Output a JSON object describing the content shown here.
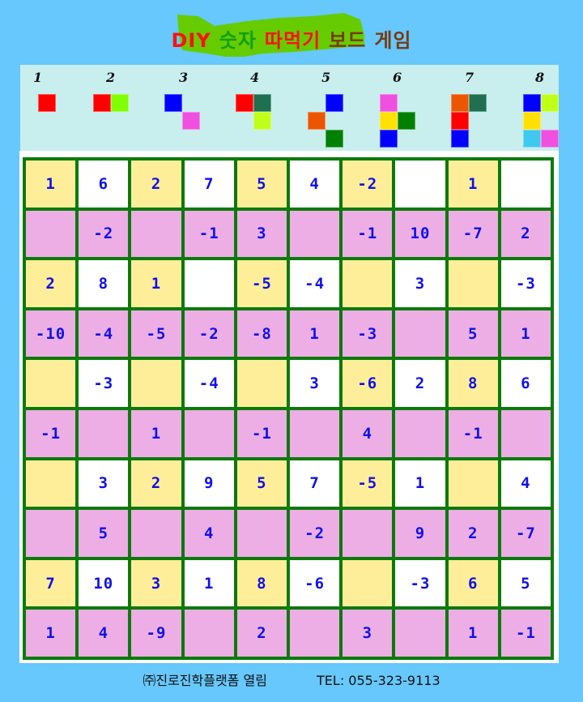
{
  "title": {
    "words": [
      {
        "text": "DIY",
        "color": "#ff1010"
      },
      {
        "text": "숫자",
        "color": "#10a010"
      },
      {
        "text": "따먹기",
        "color": "#ff1010"
      },
      {
        "text": "보드",
        "color": "#7a3a10"
      },
      {
        "text": "게임",
        "color": "#7a3a10"
      }
    ],
    "blob_color": "#66cc00"
  },
  "pieces": [
    {
      "label": "1",
      "cells": [
        [
          0,
          0,
          "#ff0000"
        ]
      ]
    },
    {
      "label": "2",
      "cells": [
        [
          0,
          0,
          "#ff0000"
        ],
        [
          0,
          1,
          "#80ff00"
        ]
      ]
    },
    {
      "label": "3",
      "cells": [
        [
          0,
          0,
          "#0000ff"
        ],
        [
          1,
          1,
          "#f050e0"
        ]
      ]
    },
    {
      "label": "4",
      "cells": [
        [
          0,
          0,
          "#ff0000"
        ],
        [
          0,
          1,
          "#1e7050"
        ],
        [
          1,
          1,
          "#c0ff18"
        ]
      ]
    },
    {
      "label": "5",
      "cells": [
        [
          0,
          1,
          "#0000ff"
        ],
        [
          1,
          0,
          "#ee5500"
        ],
        [
          2,
          1,
          "#008000"
        ]
      ]
    },
    {
      "label": "6",
      "cells": [
        [
          0,
          0,
          "#f050e0"
        ],
        [
          1,
          0,
          "#ffe000"
        ],
        [
          1,
          1,
          "#008000"
        ],
        [
          2,
          0,
          "#0000ff"
        ]
      ]
    },
    {
      "label": "7",
      "cells": [
        [
          0,
          0,
          "#ee5500"
        ],
        [
          0,
          1,
          "#1e7050"
        ],
        [
          1,
          0,
          "#ff0000"
        ],
        [
          2,
          0,
          "#0000ff"
        ]
      ]
    },
    {
      "label": "8",
      "cells": [
        [
          0,
          0,
          "#0000ff"
        ],
        [
          0,
          1,
          "#c0ff18"
        ],
        [
          1,
          0,
          "#ffe000"
        ],
        [
          2,
          0,
          "#40c8f0"
        ],
        [
          2,
          1,
          "#f050e0"
        ]
      ]
    }
  ],
  "board": {
    "colors": {
      "yellow": "#ffee99",
      "white": "#ffffff",
      "pink": "#ecaee4",
      "border": "#0b7a0b",
      "number": "#1010e8"
    },
    "rows": [
      [
        "1",
        "6",
        "2",
        "7",
        "5",
        "4",
        "-2",
        "",
        "1",
        ""
      ],
      [
        "",
        "-2",
        "",
        "-1",
        "3",
        "",
        "-1",
        "10",
        "-7",
        "2"
      ],
      [
        "2",
        "8",
        "1",
        "",
        "-5",
        "-4",
        "",
        "3",
        "",
        "-3"
      ],
      [
        "-10",
        "-4",
        "-5",
        "-2",
        "-8",
        "1",
        "-3",
        "",
        "5",
        "1"
      ],
      [
        "",
        "-3",
        "",
        "-4",
        "",
        "3",
        "-6",
        "2",
        "8",
        "6"
      ],
      [
        "-1",
        "",
        "1",
        "",
        "-1",
        "",
        "4",
        "",
        "-1",
        ""
      ],
      [
        "",
        "3",
        "2",
        "9",
        "5",
        "7",
        "-5",
        "1",
        "",
        "4"
      ],
      [
        "",
        "5",
        "",
        "4",
        "",
        "-2",
        "",
        "9",
        "2",
        "-7"
      ],
      [
        "7",
        "10",
        "3",
        "1",
        "8",
        "-6",
        "",
        "-3",
        "6",
        "5"
      ],
      [
        "1",
        "4",
        "-9",
        "",
        "2",
        "",
        "3",
        "",
        "1",
        "-1"
      ]
    ]
  },
  "footer": {
    "company": "㈜진로진학플랫폼 열림",
    "tel": "TEL:  055-323-9113"
  }
}
